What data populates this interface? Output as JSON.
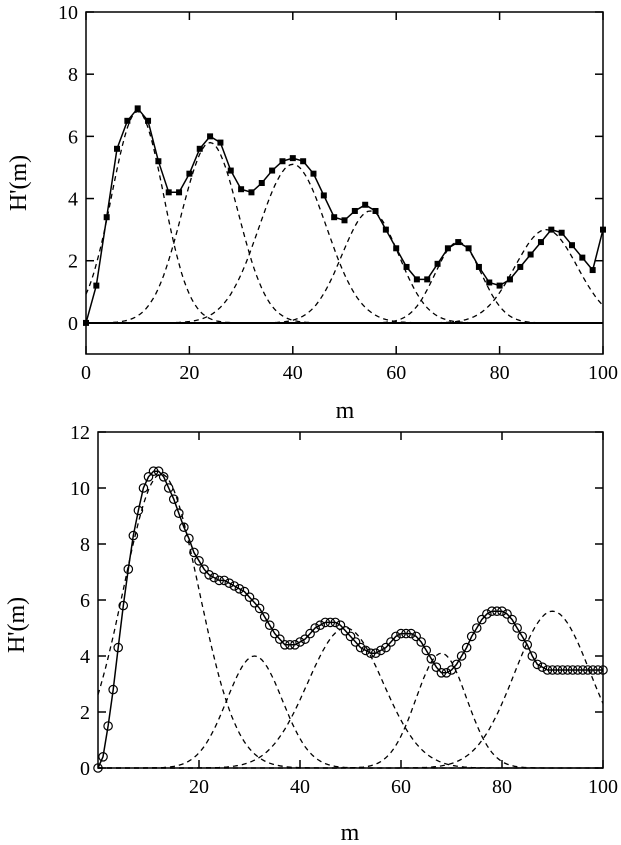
{
  "chart_data": [
    {
      "type": "line",
      "xlabel": "m",
      "ylabel": "H'(m)",
      "xlim": [
        0,
        100
      ],
      "ylim": [
        -1,
        10
      ],
      "xticks": [
        0,
        20,
        40,
        60,
        80,
        100
      ],
      "yticks": [
        0,
        2,
        4,
        6,
        8,
        10
      ],
      "grid": false,
      "marker": "filled-square",
      "total": {
        "x": [
          0,
          2,
          4,
          6,
          8,
          10,
          12,
          14,
          16,
          18,
          20,
          22,
          24,
          26,
          28,
          30,
          32,
          34,
          36,
          38,
          40,
          42,
          44,
          46,
          48,
          50,
          52,
          54,
          56,
          58,
          60,
          62,
          64,
          66,
          68,
          70,
          72,
          74,
          76,
          78,
          80,
          82,
          84,
          86,
          88,
          90,
          92,
          94,
          96,
          98,
          100
        ],
        "y": [
          0,
          1.2,
          3.4,
          5.6,
          6.5,
          6.9,
          6.5,
          5.2,
          4.2,
          4.2,
          4.8,
          5.6,
          6.0,
          5.8,
          4.9,
          4.3,
          4.2,
          4.5,
          4.9,
          5.2,
          5.3,
          5.2,
          4.8,
          4.1,
          3.4,
          3.3,
          3.6,
          3.8,
          3.6,
          3.0,
          2.4,
          1.8,
          1.4,
          1.4,
          1.9,
          2.4,
          2.6,
          2.4,
          1.8,
          1.3,
          1.2,
          1.4,
          1.8,
          2.2,
          2.6,
          3.0,
          2.9,
          2.5,
          2.1,
          1.7,
          3.0
        ]
      },
      "components": [
        {
          "center": 10,
          "height": 6.8,
          "width": 5
        },
        {
          "center": 24,
          "height": 5.8,
          "width": 5.5
        },
        {
          "center": 40,
          "height": 5.1,
          "width": 6.5
        },
        {
          "center": 55,
          "height": 3.6,
          "width": 5.5
        },
        {
          "center": 72,
          "height": 2.6,
          "width": 4.5
        },
        {
          "center": 89,
          "height": 3.0,
          "width": 6
        }
      ]
    },
    {
      "type": "line",
      "xlabel": "m",
      "ylabel": "H'(m)",
      "xlim": [
        0,
        100
      ],
      "ylim": [
        0,
        12
      ],
      "xticks": [
        20,
        40,
        60,
        80,
        100
      ],
      "yticks": [
        0,
        2,
        4,
        6,
        8,
        10,
        12
      ],
      "grid": false,
      "marker": "open-circle",
      "total": {
        "x": [
          0,
          1,
          2,
          3,
          4,
          5,
          6,
          7,
          8,
          9,
          10,
          11,
          12,
          13,
          14,
          15,
          16,
          17,
          18,
          19,
          20,
          21,
          22,
          23,
          24,
          25,
          26,
          27,
          28,
          29,
          30,
          31,
          32,
          33,
          34,
          35,
          36,
          37,
          38,
          39,
          40,
          41,
          42,
          43,
          44,
          45,
          46,
          47,
          48,
          49,
          50,
          51,
          52,
          53,
          54,
          55,
          56,
          57,
          58,
          59,
          60,
          61,
          62,
          63,
          64,
          65,
          66,
          67,
          68,
          69,
          70,
          71,
          72,
          73,
          74,
          75,
          76,
          77,
          78,
          79,
          80,
          81,
          82,
          83,
          84,
          85,
          86,
          87,
          88,
          89,
          90,
          91,
          92,
          93,
          94,
          95,
          96,
          97,
          98,
          99,
          100
        ],
        "y": [
          0,
          0.4,
          1.5,
          2.8,
          4.3,
          5.8,
          7.1,
          8.3,
          9.2,
          10.0,
          10.4,
          10.6,
          10.6,
          10.4,
          10.0,
          9.6,
          9.1,
          8.6,
          8.2,
          7.7,
          7.4,
          7.1,
          6.9,
          6.8,
          6.7,
          6.7,
          6.6,
          6.5,
          6.4,
          6.3,
          6.1,
          5.9,
          5.7,
          5.4,
          5.1,
          4.8,
          4.6,
          4.4,
          4.4,
          4.4,
          4.5,
          4.6,
          4.8,
          5.0,
          5.1,
          5.2,
          5.2,
          5.2,
          5.1,
          4.9,
          4.7,
          4.5,
          4.3,
          4.2,
          4.1,
          4.1,
          4.2,
          4.3,
          4.5,
          4.7,
          4.8,
          4.8,
          4.8,
          4.7,
          4.5,
          4.2,
          3.9,
          3.6,
          3.4,
          3.4,
          3.5,
          3.7,
          4.0,
          4.3,
          4.7,
          5.0,
          5.3,
          5.5,
          5.6,
          5.6,
          5.6,
          5.5,
          5.3,
          5.0,
          4.7,
          4.4,
          4.0,
          3.7,
          3.6,
          3.5,
          3.5,
          3.5,
          3.5,
          3.5,
          3.5,
          3.5,
          3.5,
          3.5,
          3.5,
          3.5,
          3.5
        ]
      },
      "components": [
        {
          "center": 12.5,
          "height": 10.5,
          "width": 7.5
        },
        {
          "center": 31,
          "height": 4.0,
          "width": 5.5
        },
        {
          "center": 49,
          "height": 5.0,
          "width": 7.5
        },
        {
          "center": 68,
          "height": 4.1,
          "width": 5
        },
        {
          "center": 90,
          "height": 5.6,
          "width": 7.5
        }
      ]
    }
  ]
}
